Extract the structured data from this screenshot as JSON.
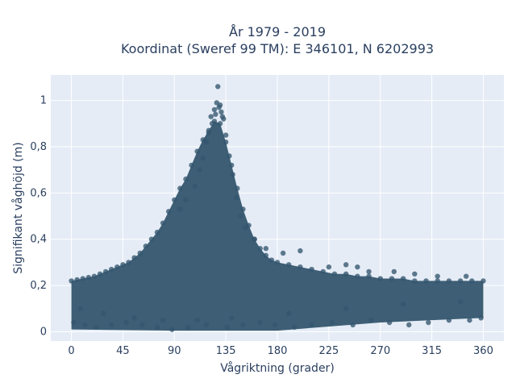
{
  "chart_data": {
    "type": "scatter",
    "title_lines": [
      "År 1979 - 2019",
      "Koordinat (Sweref 99 TM): E 346101, N 6202993"
    ],
    "xlabel": "Vågriktning (grader)",
    "ylabel": "Signifikant våghöjd (m)",
    "xlim": [
      -18,
      378
    ],
    "ylim": [
      -0.04,
      1.11
    ],
    "xticks": [
      0,
      45,
      90,
      135,
      180,
      225,
      270,
      315,
      360
    ],
    "xtick_labels": [
      "0",
      "45",
      "90",
      "135",
      "180",
      "225",
      "270",
      "315",
      "360"
    ],
    "yticks": [
      0,
      0.2,
      0.4,
      0.6,
      0.8,
      1
    ],
    "ytick_labels": [
      "0",
      "0,2",
      "0,4",
      "0,6",
      "0,8",
      "1"
    ],
    "grid": true,
    "plot_background": "#e5ecf6",
    "marker_color": "#34566e",
    "series": [
      {
        "x": [
          0,
          5,
          10,
          15,
          20,
          25,
          30,
          35,
          40,
          45,
          50,
          55,
          60,
          65,
          70,
          75,
          80,
          85,
          90,
          95,
          100,
          105,
          110,
          115,
          120,
          125,
          130,
          135,
          140,
          145,
          150,
          155,
          160,
          165,
          170,
          175,
          180,
          190,
          200,
          210,
          220,
          230,
          240,
          250,
          260,
          270,
          280,
          290,
          300,
          310,
          320,
          330,
          340,
          350,
          360,
          122,
          125,
          127,
          128,
          130,
          131,
          133,
          118,
          120,
          123,
          126,
          129,
          132,
          135,
          138,
          112,
          115,
          141,
          144,
          108,
          148,
          152,
          100,
          95,
          160,
          170,
          185,
          200,
          225,
          240,
          250,
          260,
          282,
          300,
          320,
          345,
          2,
          12,
          22,
          35,
          48,
          62,
          75,
          88,
          102,
          118,
          136,
          150,
          165,
          178,
          195,
          210,
          228,
          246,
          262,
          278,
          295,
          312,
          330,
          348,
          358,
          8,
          28,
          55,
          80,
          110,
          140,
          190,
          240,
          290,
          340
        ],
        "y": [
          0.22,
          0.225,
          0.23,
          0.235,
          0.24,
          0.25,
          0.26,
          0.27,
          0.28,
          0.29,
          0.3,
          0.32,
          0.34,
          0.37,
          0.4,
          0.43,
          0.47,
          0.52,
          0.57,
          0.62,
          0.66,
          0.72,
          0.78,
          0.83,
          0.87,
          0.91,
          0.9,
          0.82,
          0.72,
          0.62,
          0.53,
          0.46,
          0.4,
          0.36,
          0.33,
          0.31,
          0.3,
          0.29,
          0.28,
          0.27,
          0.26,
          0.25,
          0.25,
          0.24,
          0.24,
          0.23,
          0.23,
          0.23,
          0.22,
          0.22,
          0.22,
          0.22,
          0.22,
          0.22,
          0.22,
          0.93,
          0.96,
          0.99,
          1.06,
          0.98,
          0.95,
          0.92,
          0.82,
          0.86,
          0.9,
          0.94,
          0.97,
          0.93,
          0.85,
          0.76,
          0.7,
          0.75,
          0.68,
          0.58,
          0.63,
          0.5,
          0.45,
          0.57,
          0.53,
          0.4,
          0.36,
          0.34,
          0.35,
          0.28,
          0.29,
          0.28,
          0.26,
          0.26,
          0.25,
          0.24,
          0.24,
          0.04,
          0.03,
          0.02,
          0.03,
          0.04,
          0.03,
          0.02,
          0.01,
          0.02,
          0.03,
          0.02,
          0.03,
          0.04,
          0.03,
          0.02,
          0.03,
          0.04,
          0.03,
          0.05,
          0.04,
          0.03,
          0.04,
          0.05,
          0.05,
          0.06,
          0.1,
          0.08,
          0.06,
          0.05,
          0.05,
          0.06,
          0.08,
          0.1,
          0.12,
          0.13
        ]
      }
    ]
  }
}
